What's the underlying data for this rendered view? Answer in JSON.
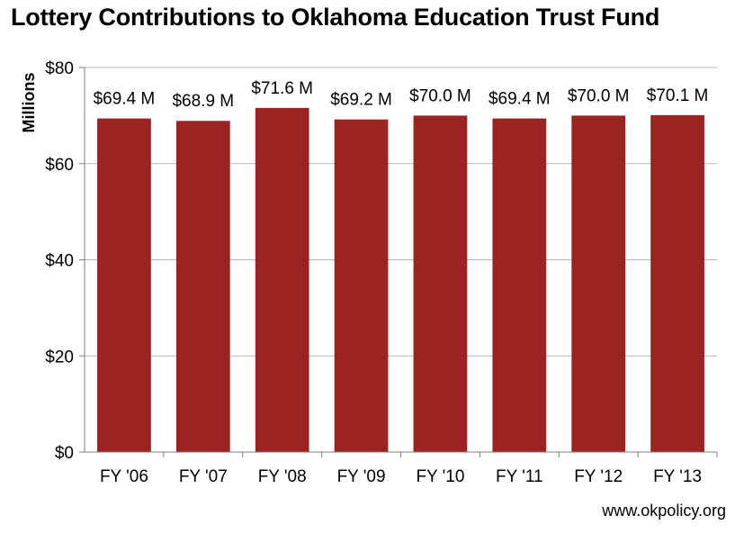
{
  "chart_data": {
    "type": "bar",
    "title": "Lottery Contributions to Oklahoma Education Trust Fund",
    "ylabel": "Millions",
    "xlabel": "",
    "categories": [
      "FY '06",
      "FY '07",
      "FY '08",
      "FY '09",
      "FY '10",
      "FY '11",
      "FY '12",
      "FY '13"
    ],
    "values": [
      69.4,
      68.9,
      71.6,
      69.2,
      70.0,
      69.4,
      70.0,
      70.1
    ],
    "data_labels": [
      "$69.4 M",
      "$68.9 M",
      "$71.6 M",
      "$69.2 M",
      "$70.0 M",
      "$69.4 M",
      "$70.0 M",
      "$70.1 M"
    ],
    "ylim": [
      0,
      80
    ],
    "yticks": [
      0,
      20,
      40,
      60,
      80
    ],
    "ytick_labels": [
      "$0",
      "$20",
      "$40",
      "$60",
      "$80"
    ],
    "grid": true,
    "bar_color": "#9b2423"
  },
  "source": "www.okpolicy.org"
}
